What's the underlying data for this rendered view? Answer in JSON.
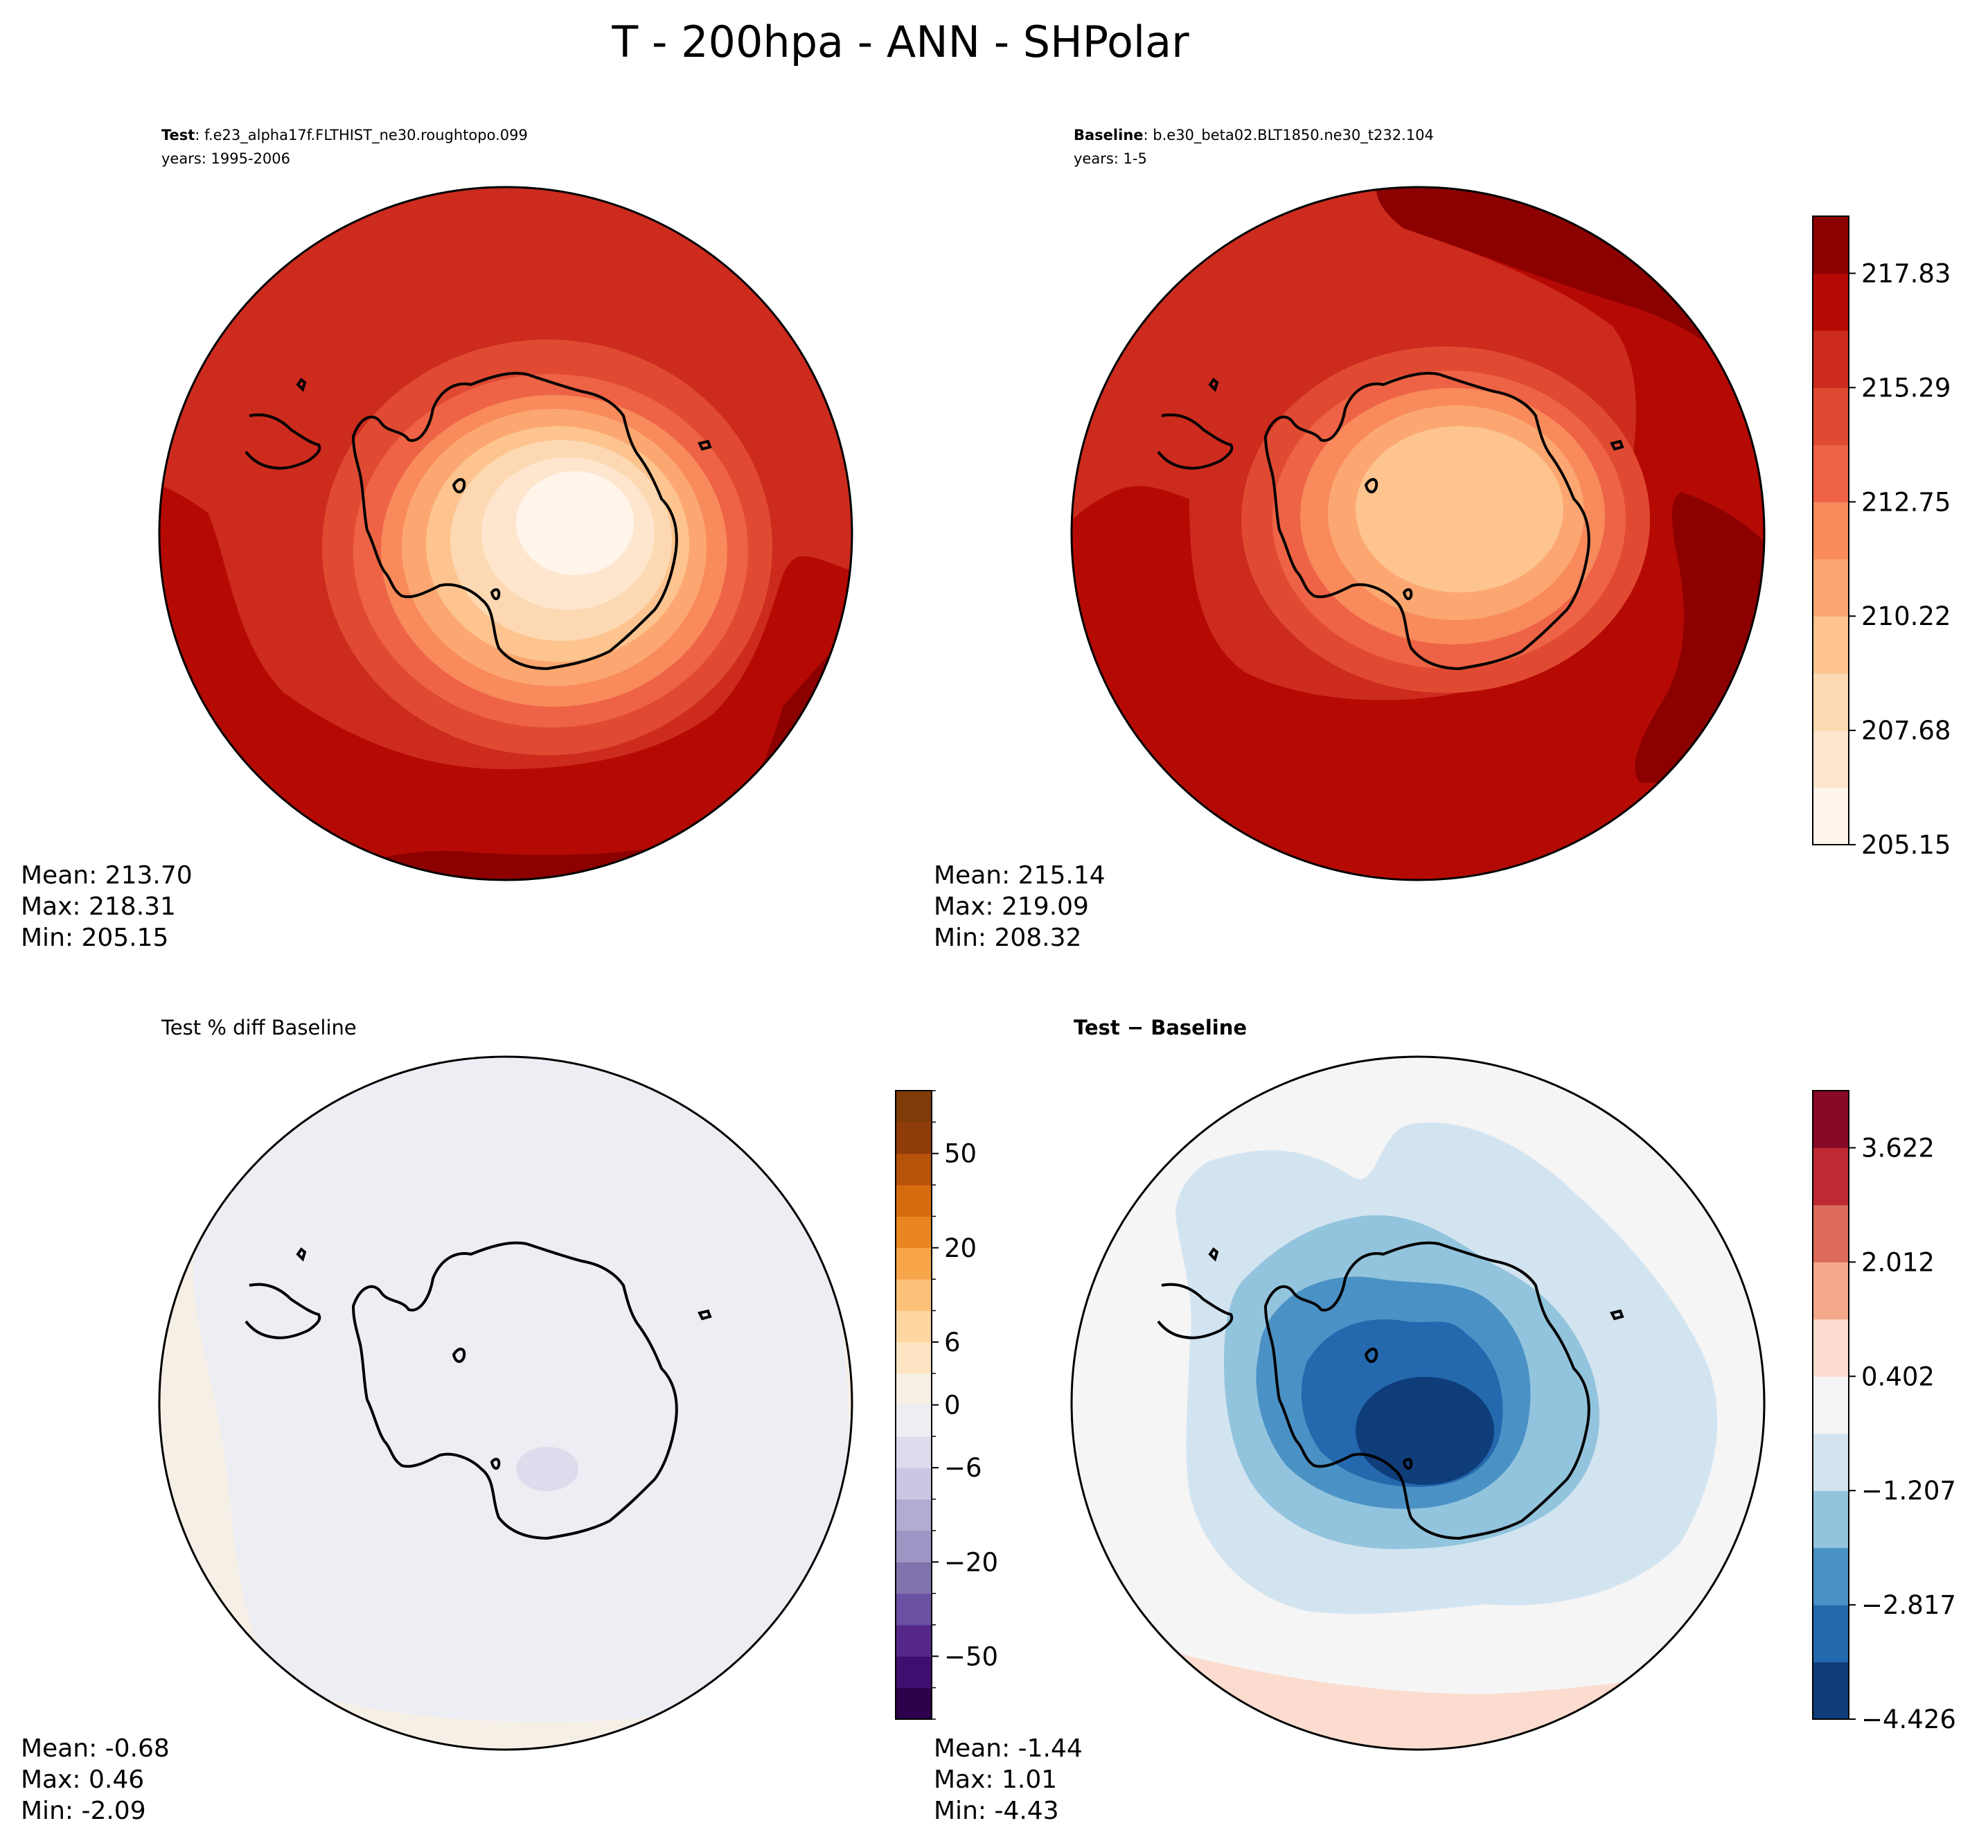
{
  "figure": {
    "title": "T - 200hpa - ANN - SHPolar"
  },
  "colors": {
    "coast": "#000000",
    "oranges": [
      "#fff5eb",
      "#fee6ce",
      "#fdd9b3",
      "#fdc48f",
      "#fca771",
      "#f88a5b",
      "#ee6345",
      "#e04a33",
      "#cd2b1e",
      "#b50a04",
      "#8c0000"
    ],
    "puor": [
      "#2d004b",
      "#3f0f70",
      "#542788",
      "#6a51a3",
      "#8073ac",
      "#9e95c5",
      "#b2abd2",
      "#cbc6e3",
      "#dedbed",
      "#eceef3",
      "#f6efe6",
      "#fee6c4",
      "#fdd6a2",
      "#fdc17a",
      "#f9a64a",
      "#e98621",
      "#d66c0d",
      "#b65209",
      "#8f3c08",
      "#7f3b08"
    ],
    "rdbu": [
      "#0f3d7a",
      "#2468ae",
      "#4a92c5",
      "#93c4de",
      "#d3e4f1",
      "#f5f5f5",
      "#fcdcce",
      "#f5a98b",
      "#dc6c59",
      "#bf2a32",
      "#860a26"
    ]
  },
  "panels": {
    "test": {
      "label_bold": "Test",
      "label_rest": ": f.e23_alpha17f.FLTHIST_ne30.roughtopo.099",
      "years": "years: 1995-2006",
      "stats": {
        "mean": "Mean: 213.70",
        "max": "Max: 218.31",
        "min": "Min: 205.15"
      }
    },
    "baseline": {
      "label_bold": "Baseline",
      "label_rest": ": b.e30_beta02.BLT1850.ne30_t232.104",
      "years": "years: 1-5",
      "stats": {
        "mean": "Mean: 215.14",
        "max": "Max: 219.09",
        "min": "Min: 208.32"
      }
    },
    "pctdiff": {
      "title": "Test % diff Baseline",
      "stats": {
        "mean": "Mean: -0.68",
        "max": "Max:  0.46",
        "min": "Min: -2.09"
      }
    },
    "diff": {
      "title": "Test − Baseline",
      "stats": {
        "mean": "Mean: -1.44",
        "max": "Max:  1.01",
        "min": "Min: -4.43"
      }
    }
  },
  "chart_data": [
    {
      "type": "heatmap",
      "name": "Test",
      "projection": "south polar stereographic",
      "field": "T at 200 hPa, annual mean",
      "contour_levels": [
        205.15,
        206.42,
        207.68,
        208.95,
        210.22,
        211.48,
        212.75,
        214.02,
        215.29,
        216.56,
        217.83,
        219.09
      ],
      "mean": 213.7,
      "max": 218.31,
      "min": 205.15
    },
    {
      "type": "heatmap",
      "name": "Baseline",
      "projection": "south polar stereographic",
      "field": "T at 200 hPa, annual mean",
      "contour_levels": [
        205.15,
        206.42,
        207.68,
        208.95,
        210.22,
        211.48,
        212.75,
        214.02,
        215.29,
        216.56,
        217.83,
        219.09
      ],
      "colorbar_ticks": [
        "205.15",
        "207.68",
        "210.22",
        "212.75",
        "215.29",
        "217.83"
      ],
      "mean": 215.14,
      "max": 219.09,
      "min": 208.32
    },
    {
      "type": "heatmap",
      "name": "Test % diff Baseline",
      "colorbar_ticks": [
        "−50",
        "−20",
        "−6",
        "0",
        "6",
        "20",
        "50"
      ],
      "colorbar_levels": 20,
      "mean": -0.68,
      "max": 0.46,
      "min": -2.09
    },
    {
      "type": "heatmap",
      "name": "Test − Baseline",
      "contour_levels": [
        -4.426,
        -3.621,
        -2.817,
        -2.012,
        -1.207,
        -0.402,
        0.402,
        1.207,
        2.012,
        2.817,
        3.622,
        4.426
      ],
      "colorbar_ticks": [
        "−4.426",
        "−2.817",
        "−1.207",
        "0.402",
        "2.012",
        "3.622"
      ],
      "mean": -1.44,
      "max": 1.01,
      "min": -4.43
    }
  ]
}
